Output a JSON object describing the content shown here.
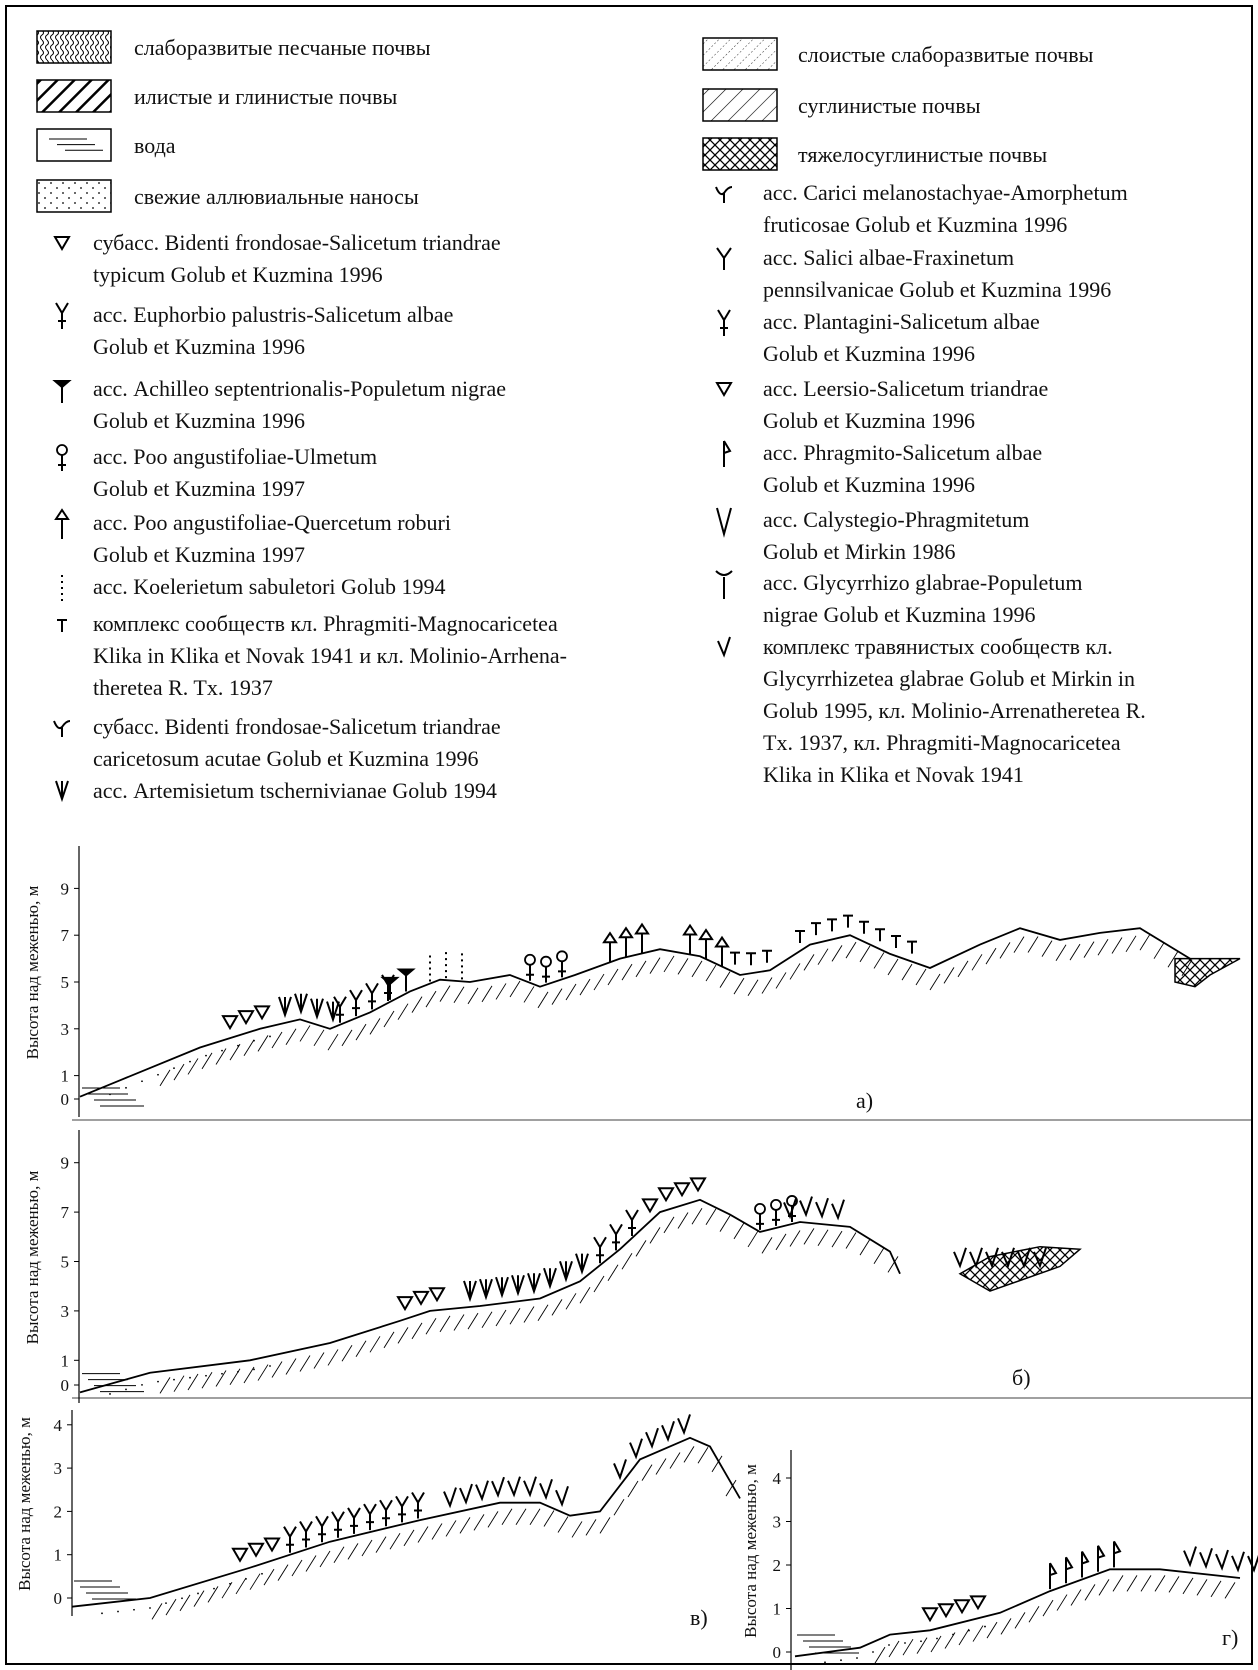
{
  "legend_left": [
    {
      "lines": [
        "слаборазвитые песчаные почвы"
      ]
    },
    {
      "lines": [
        "илистые и глинистые почвы"
      ]
    },
    {
      "lines": [
        "вода"
      ]
    },
    {
      "lines": [
        "свежие аллювиальные наносы"
      ]
    },
    {
      "lines": [
        "субасс. Bidenti frondosae-Salicetum triandrae",
        "typicum Golub et Kuzmina 1996"
      ]
    },
    {
      "lines": [
        "асс. Euphorbio palustris-Salicetum albae",
        "Golub et Kuzmina 1996"
      ]
    },
    {
      "lines": [
        "асс. Achilleo septentrionalis-Populetum nigrae",
        "Golub et Kuzmina 1996"
      ]
    },
    {
      "lines": [
        "асс. Poo angustifoliae-Ulmetum",
        "Golub et Kuzmina 1997"
      ]
    },
    {
      "lines": [
        "асс. Poo angustifoliae-Quercetum roburi",
        "Golub et Kuzmina 1997"
      ]
    },
    {
      "lines": [
        "асс. Koelerietum sabuletori Golub 1994"
      ]
    },
    {
      "lines": [
        "комплекс сообществ кл. Phragmiti-Magnocaricetea",
        "Klika in Klika et Novak 1941 и кл. Molinio-Arrhena-",
        "theretea R. Tx. 1937"
      ]
    },
    {
      "lines": [
        "субасс. Bidenti frondosae-Salicetum triandrae",
        "caricetosum acutae Golub et Kuzmina 1996"
      ]
    },
    {
      "lines": [
        "асс. Artemisietum tschernivianae Golub 1994"
      ]
    }
  ],
  "legend_right": [
    {
      "lines": [
        "слоистые слаборазвитые почвы"
      ]
    },
    {
      "lines": [
        "суглинистые почвы"
      ]
    },
    {
      "lines": [
        "тяжелосуглинистые почвы"
      ]
    },
    {
      "lines": [
        "асс. Carici melanostachyae-Amorphetum",
        "fruticosae Golub et Kuzmina 1996"
      ]
    },
    {
      "lines": [
        "асс. Salici albae-Fraxinetum",
        "pennsilvanicae Golub et Kuzmina 1996"
      ]
    },
    {
      "lines": [
        "асс. Plantagini-Salicetum albae",
        "Golub et Kuzmina 1996"
      ]
    },
    {
      "lines": [
        "асс. Leersio-Salicetum triandrae",
        "Golub et Kuzmina 1996"
      ]
    },
    {
      "lines": [
        "асс. Phragmito-Salicetum albae",
        "Golub et Kuzmina 1996"
      ]
    },
    {
      "lines": [
        "асс. Calystegio-Phragmitetum",
        "Golub et Mirkin 1986"
      ]
    },
    {
      "lines": [
        "асс. Glycyrrhizo glabrae-Populetum",
        "nigrae Golub et Kuzmina 1996"
      ]
    },
    {
      "lines": [
        "комплекс травянистых сообществ кл.",
        "Glycyrrhizetea glabrae Golub et Mirkin in",
        "Golub 1995, кл. Molinio-Arrenatheretea R.",
        "Tx. 1937, кл. Phragmiti-Magnocaricetea",
        "Klika in Klika et Novak 1941"
      ]
    }
  ],
  "panels": [
    {
      "label": "а)",
      "y_axis_label": "Высота над меженью, м",
      "ticks": [
        0,
        1,
        3,
        5,
        7,
        9
      ]
    },
    {
      "label": "б)",
      "y_axis_label": "Высота над меженью, м",
      "ticks": [
        0,
        1,
        3,
        5,
        7,
        9
      ]
    },
    {
      "label": "в)",
      "y_axis_label": "Высота над меженью, м",
      "ticks": [
        0,
        1,
        2,
        3,
        4
      ]
    },
    {
      "label": "г)",
      "y_axis_label": "Высота над меженью, м",
      "ticks": [
        0,
        1,
        2,
        3,
        4
      ]
    }
  ]
}
